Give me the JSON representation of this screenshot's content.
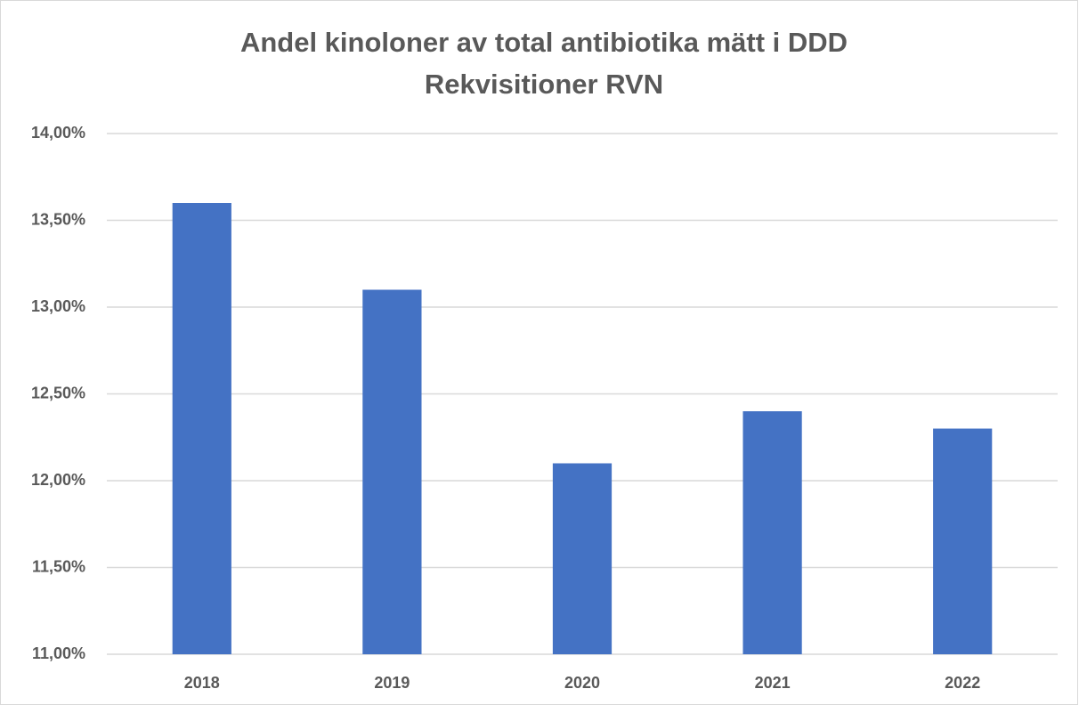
{
  "chart_data": {
    "type": "bar",
    "title": "Andel kinoloner av total antibiotika mätt i DDD",
    "subtitle": "Rekvisitioner RVN",
    "categories": [
      "2018",
      "2019",
      "2020",
      "2021",
      "2022"
    ],
    "values": [
      13.6,
      13.1,
      12.1,
      12.4,
      12.3
    ],
    "color": "#4472c4",
    "ylim": [
      11,
      14
    ],
    "yticks": [
      {
        "value": 11,
        "label": "11,00%"
      },
      {
        "value": 11.5,
        "label": "11,50%"
      },
      {
        "value": 12,
        "label": "12,00%"
      },
      {
        "value": 12.5,
        "label": "12,50%"
      },
      {
        "value": 13,
        "label": "13,00%"
      },
      {
        "value": 13.5,
        "label": "13,50%"
      },
      {
        "value": 14,
        "label": "14,00%"
      }
    ],
    "grid": true
  }
}
